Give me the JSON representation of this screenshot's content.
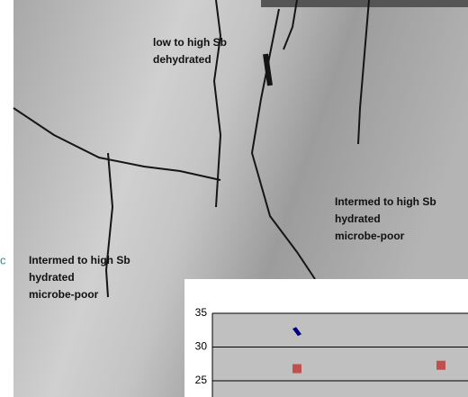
{
  "annotations": [
    {
      "lines": [
        "low to high Sb",
        "dehydrated"
      ]
    },
    {
      "lines": [
        "Intermed to high Sb",
        "hydrated",
        "microbe-poor"
      ]
    },
    {
      "lines": [
        "Intermed to high Sb",
        "hydrated",
        "microbe-poor"
      ]
    }
  ],
  "side_text": "c",
  "chart_data": {
    "type": "scatter",
    "categories": [
      null,
      null
    ],
    "series": [
      {
        "color": "#000080",
        "marker": "diamond",
        "values": [
          32.3,
          null
        ]
      },
      {
        "color": "#c0504d",
        "marker": "square",
        "values": [
          26.8,
          27.3
        ]
      }
    ],
    "ylim": [
      20,
      35
    ],
    "yticks": [
      35,
      30,
      25
    ],
    "grid": true
  }
}
